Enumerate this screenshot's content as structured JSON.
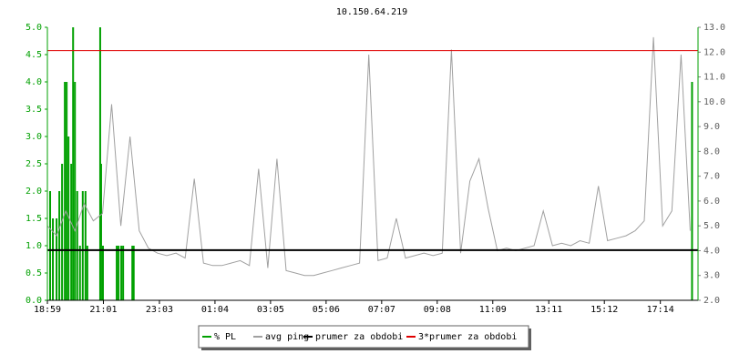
{
  "chart_data": {
    "type": "line",
    "title": "10.150.64.219",
    "xlim": [
      0,
      1417
    ],
    "xticks": [
      {
        "value": 0,
        "label": "18:59"
      },
      {
        "value": 122,
        "label": "21:01"
      },
      {
        "value": 244,
        "label": "23:03"
      },
      {
        "value": 365,
        "label": "01:04"
      },
      {
        "value": 486,
        "label": "03:05"
      },
      {
        "value": 607,
        "label": "05:06"
      },
      {
        "value": 728,
        "label": "07:07"
      },
      {
        "value": 849,
        "label": "09:08"
      },
      {
        "value": 970,
        "label": "11:09"
      },
      {
        "value": 1092,
        "label": "13:11"
      },
      {
        "value": 1213,
        "label": "15:12"
      },
      {
        "value": 1335,
        "label": "17:14"
      }
    ],
    "ylim": [
      0,
      5
    ],
    "yticks": [
      {
        "value": 0,
        "label": "0.0"
      },
      {
        "value": 0.5,
        "label": "0.5"
      },
      {
        "value": 1,
        "label": "1.0"
      },
      {
        "value": 1.5,
        "label": "1.5"
      },
      {
        "value": 2,
        "label": "2.0"
      },
      {
        "value": 2.5,
        "label": "2.5"
      },
      {
        "value": 3,
        "label": "3.0"
      },
      {
        "value": 3.5,
        "label": "3.5"
      },
      {
        "value": 4,
        "label": "4.0"
      },
      {
        "value": 4.5,
        "label": "4.5"
      },
      {
        "value": 5,
        "label": "5.0"
      }
    ],
    "y2lim": [
      2,
      13
    ],
    "y2ticks": [
      {
        "value": 2,
        "label": "2.0"
      },
      {
        "value": 3,
        "label": "3.0"
      },
      {
        "value": 4,
        "label": "4.0"
      },
      {
        "value": 5,
        "label": "5.0"
      },
      {
        "value": 6,
        "label": "6.0"
      },
      {
        "value": 7,
        "label": "7.0"
      },
      {
        "value": 8,
        "label": "8.0"
      },
      {
        "value": 9,
        "label": "9.0"
      },
      {
        "value": 10,
        "label": "10.0"
      },
      {
        "value": 11,
        "label": "11.0"
      },
      {
        "value": 12,
        "label": "12.0"
      },
      {
        "value": 13,
        "label": "13.0"
      }
    ],
    "series": [
      {
        "name": "% PL",
        "color": "#00a000",
        "mark": "bar",
        "x": [
          6,
          12,
          20,
          26,
          32,
          38,
          42,
          46,
          52,
          56,
          60,
          65,
          71,
          77,
          83,
          87,
          115,
          117,
          121,
          151,
          155,
          161,
          165,
          185,
          188,
          1404
        ],
        "values": [
          2.0,
          1.5,
          1.5,
          2.0,
          2.5,
          4.0,
          4.0,
          3.0,
          2.5,
          5.0,
          4.0,
          2.0,
          1.0,
          2.0,
          2.0,
          1.0,
          5.0,
          2.5,
          1.0,
          1.0,
          1.0,
          1.0,
          1.0,
          1.0,
          1.0,
          4.0
        ]
      },
      {
        "name": "avg ping",
        "color": "#a0a0a0",
        "mark": "line",
        "axis": "y2",
        "x": [
          0,
          20,
          40,
          60,
          80,
          100,
          120,
          140,
          160,
          180,
          200,
          220,
          240,
          260,
          280,
          300,
          320,
          340,
          360,
          380,
          400,
          420,
          440,
          460,
          480,
          500,
          520,
          540,
          560,
          580,
          600,
          620,
          640,
          660,
          680,
          700,
          720,
          740,
          760,
          780,
          800,
          820,
          840,
          860,
          880,
          900,
          920,
          940,
          960,
          980,
          1000,
          1020,
          1040,
          1060,
          1080,
          1100,
          1120,
          1140,
          1160,
          1180,
          1200,
          1220,
          1240,
          1260,
          1280,
          1300,
          1320,
          1340,
          1360,
          1380,
          1400
        ],
        "values": [
          5.0,
          4.6,
          5.6,
          4.8,
          5.9,
          5.2,
          5.5,
          9.9,
          5.0,
          8.6,
          4.8,
          4.1,
          3.9,
          3.8,
          3.9,
          3.7,
          6.9,
          3.5,
          3.4,
          3.4,
          3.5,
          3.6,
          3.4,
          7.3,
          3.3,
          7.7,
          3.2,
          3.1,
          3.0,
          3.0,
          3.1,
          3.2,
          3.3,
          3.4,
          3.5,
          11.9,
          3.6,
          3.7,
          5.3,
          3.7,
          3.8,
          3.9,
          3.8,
          3.9,
          12.1,
          3.9,
          6.8,
          7.7,
          5.7,
          4.0,
          4.1,
          4.0,
          4.1,
          4.2,
          5.6,
          4.2,
          4.3,
          4.2,
          4.4,
          4.3,
          6.6,
          4.4,
          4.5,
          4.6,
          4.8,
          5.2,
          12.6,
          5.0,
          5.6,
          11.9,
          4.8
        ]
      },
      {
        "name": "prumer za obdobi",
        "color": "#000000",
        "mark": "hline",
        "axis": "y2",
        "values": [
          4.02
        ]
      },
      {
        "name": "3*prumer za obdobi",
        "color": "#e00000",
        "mark": "hline",
        "axis": "y2",
        "values": [
          12.06
        ]
      }
    ]
  }
}
